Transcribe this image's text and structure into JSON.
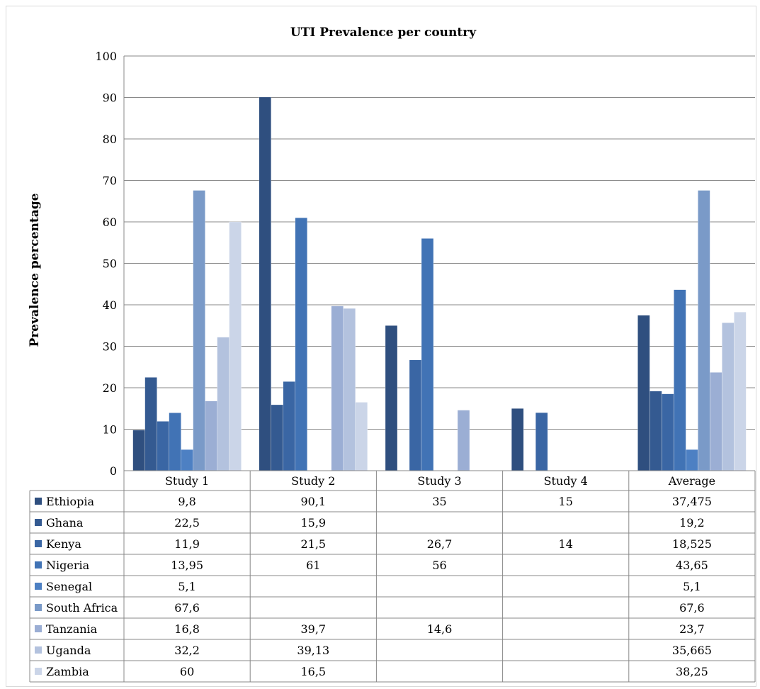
{
  "chart_data": {
    "type": "bar",
    "title": "UTI Prevalence per country",
    "xlabel": "",
    "ylabel": "Prevalence percentage",
    "ylim": [
      0,
      100
    ],
    "yticks": [
      0,
      10,
      20,
      30,
      40,
      50,
      60,
      70,
      80,
      90,
      100
    ],
    "grid": true,
    "legend": "data-table",
    "categories": [
      "Study 1",
      "Study 2",
      "Study 3",
      "Study 4",
      "Average"
    ],
    "series": [
      {
        "name": "Ethiopia",
        "color": "#2f4f7f",
        "values": [
          9.8,
          90.1,
          35,
          15,
          37.475
        ],
        "labels": [
          "9,8",
          "90,1",
          "35",
          "15",
          "37,475"
        ]
      },
      {
        "name": "Ghana",
        "color": "#345a91",
        "values": [
          22.5,
          15.9,
          null,
          null,
          19.2
        ],
        "labels": [
          "22,5",
          "15,9",
          "",
          "",
          "19,2"
        ]
      },
      {
        "name": "Kenya",
        "color": "#3a66a4",
        "values": [
          11.9,
          21.5,
          26.7,
          14,
          18.525
        ],
        "labels": [
          "11,9",
          "21,5",
          "26,7",
          "14",
          "18,525"
        ]
      },
      {
        "name": "Nigeria",
        "color": "#4173b5",
        "values": [
          13.95,
          61,
          56,
          null,
          43.65
        ],
        "labels": [
          "13,95",
          "61",
          "56",
          "",
          "43,65"
        ]
      },
      {
        "name": "Senegal",
        "color": "#4d80c3",
        "values": [
          5.1,
          null,
          null,
          null,
          5.1
        ],
        "labels": [
          "5,1",
          "",
          "",
          "",
          "5,1"
        ]
      },
      {
        "name": "South Africa",
        "color": "#7a9ac8",
        "values": [
          67.6,
          null,
          null,
          null,
          67.6
        ],
        "labels": [
          "67,6",
          "",
          "",
          "",
          "67,6"
        ]
      },
      {
        "name": "Tanzania",
        "color": "#9baed4",
        "values": [
          16.8,
          39.7,
          14.6,
          null,
          23.7
        ],
        "labels": [
          "16,8",
          "39,7",
          "14,6",
          "",
          "23,7"
        ]
      },
      {
        "name": "Uganda",
        "color": "#b3c2de",
        "values": [
          32.2,
          39.13,
          null,
          null,
          35.665
        ],
        "labels": [
          "32,2",
          "39,13",
          "",
          "",
          "35,665"
        ]
      },
      {
        "name": "Zambia",
        "color": "#cbd5e8",
        "values": [
          60,
          16.5,
          null,
          null,
          38.25
        ],
        "labels": [
          "60",
          "16,5",
          "",
          "",
          "38,25"
        ]
      }
    ]
  }
}
